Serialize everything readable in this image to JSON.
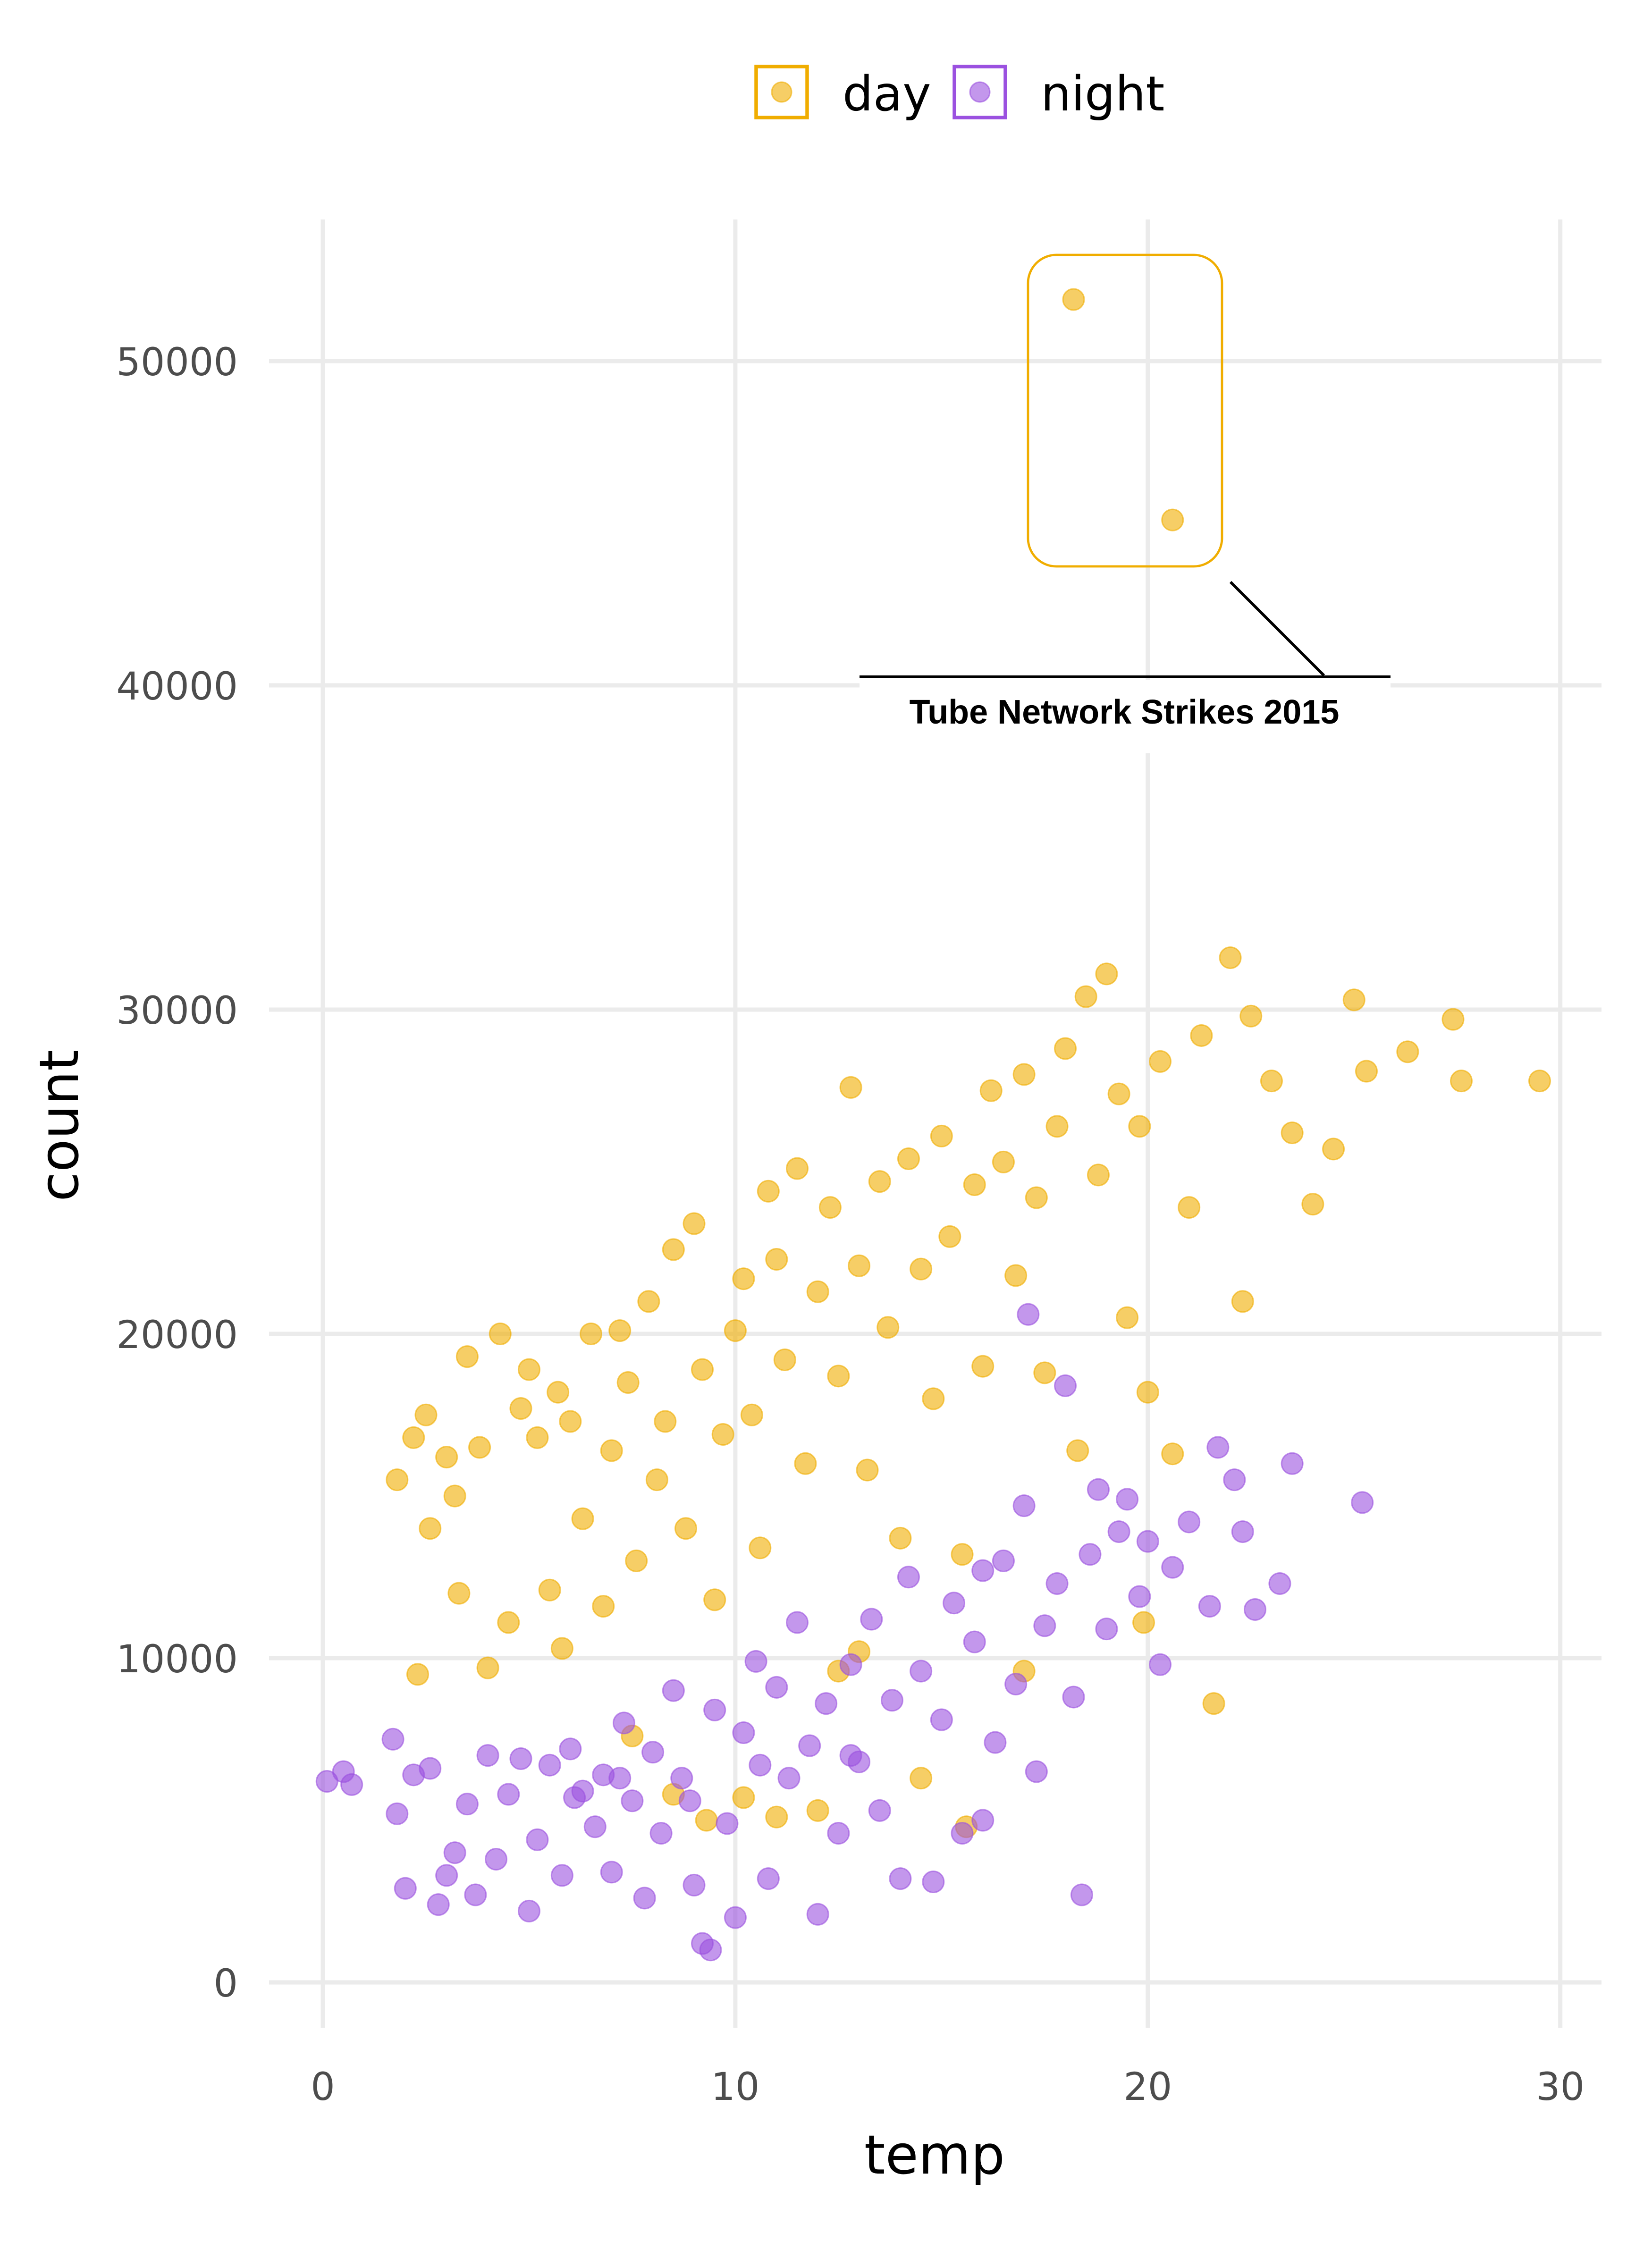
{
  "chart_data": {
    "type": "scatter",
    "xlabel": "temp",
    "ylabel": "count",
    "xlim": [
      -1.3,
      31
    ],
    "ylim": [
      -1400,
      54000
    ],
    "x_ticks": [
      "0",
      "10",
      "20",
      "30"
    ],
    "y_ticks": [
      "0",
      "10000",
      "20000",
      "30000",
      "40000",
      "50000"
    ],
    "grid": true,
    "legend_position": "top",
    "legend": {
      "day": "day",
      "night": "night"
    },
    "colors": {
      "day": "#F0AD00",
      "night": "#9B51E0"
    },
    "annotation": {
      "label": "Tube Network Strikes 2015",
      "highlighted_series": "day",
      "highlighted_points": [
        [
          18.2,
          51900
        ],
        [
          20.6,
          45100
        ]
      ]
    },
    "series": [
      {
        "name": "day",
        "points": [
          [
            1.8,
            15500
          ],
          [
            2.2,
            16800
          ],
          [
            2.5,
            17500
          ],
          [
            2.6,
            14000
          ],
          [
            2.3,
            9500
          ],
          [
            3.0,
            16200
          ],
          [
            3.2,
            15000
          ],
          [
            3.3,
            12000
          ],
          [
            3.5,
            19300
          ],
          [
            3.8,
            16500
          ],
          [
            4.0,
            9700
          ],
          [
            4.3,
            20000
          ],
          [
            4.5,
            11100
          ],
          [
            4.8,
            17700
          ],
          [
            5.0,
            18900
          ],
          [
            5.2,
            16800
          ],
          [
            5.5,
            12100
          ],
          [
            5.8,
            10300
          ],
          [
            5.7,
            18200
          ],
          [
            6.0,
            17300
          ],
          [
            6.3,
            14300
          ],
          [
            6.5,
            20000
          ],
          [
            6.8,
            11600
          ],
          [
            7.0,
            16400
          ],
          [
            7.2,
            20100
          ],
          [
            7.4,
            18500
          ],
          [
            7.6,
            13000
          ],
          [
            7.9,
            21000
          ],
          [
            8.1,
            15500
          ],
          [
            8.3,
            17300
          ],
          [
            8.5,
            22600
          ],
          [
            8.8,
            14000
          ],
          [
            9.0,
            23400
          ],
          [
            9.2,
            18900
          ],
          [
            9.5,
            11800
          ],
          [
            9.7,
            16900
          ],
          [
            10.0,
            20100
          ],
          [
            10.2,
            21700
          ],
          [
            10.4,
            17500
          ],
          [
            10.6,
            13400
          ],
          [
            10.8,
            24400
          ],
          [
            11.0,
            22300
          ],
          [
            11.2,
            19200
          ],
          [
            11.5,
            25100
          ],
          [
            11.7,
            16000
          ],
          [
            12.0,
            21300
          ],
          [
            12.3,
            23900
          ],
          [
            12.5,
            18700
          ],
          [
            12.8,
            27600
          ],
          [
            13.0,
            22100
          ],
          [
            13.2,
            15800
          ],
          [
            13.5,
            24700
          ],
          [
            13.7,
            20200
          ],
          [
            14.0,
            13700
          ],
          [
            14.2,
            25400
          ],
          [
            14.5,
            22000
          ],
          [
            14.8,
            18000
          ],
          [
            15.0,
            26100
          ],
          [
            15.2,
            23000
          ],
          [
            15.5,
            13200
          ],
          [
            15.8,
            24600
          ],
          [
            16.0,
            19000
          ],
          [
            16.2,
            27500
          ],
          [
            16.5,
            25300
          ],
          [
            16.8,
            21800
          ],
          [
            17.0,
            28000
          ],
          [
            17.3,
            24200
          ],
          [
            17.5,
            18800
          ],
          [
            17.8,
            26400
          ],
          [
            18.0,
            28800
          ],
          [
            18.3,
            16400
          ],
          [
            18.5,
            30400
          ],
          [
            18.8,
            24900
          ],
          [
            19.0,
            31100
          ],
          [
            19.3,
            27400
          ],
          [
            19.5,
            20500
          ],
          [
            19.8,
            26400
          ],
          [
            20.0,
            18200
          ],
          [
            20.3,
            28400
          ],
          [
            20.6,
            16300
          ],
          [
            21.0,
            23900
          ],
          [
            21.3,
            29200
          ],
          [
            21.6,
            8600
          ],
          [
            22.0,
            31600
          ],
          [
            22.3,
            21000
          ],
          [
            22.5,
            29800
          ],
          [
            23.0,
            27800
          ],
          [
            23.5,
            26200
          ],
          [
            24.0,
            24000
          ],
          [
            24.5,
            25700
          ],
          [
            25.0,
            30300
          ],
          [
            25.3,
            28100
          ],
          [
            26.3,
            28700
          ],
          [
            27.4,
            29700
          ],
          [
            27.6,
            27800
          ],
          [
            29.5,
            27800
          ],
          [
            7.5,
            7600
          ],
          [
            8.5,
            5800
          ],
          [
            9.3,
            5000
          ],
          [
            10.2,
            5700
          ],
          [
            11.0,
            5100
          ],
          [
            12.0,
            5300
          ],
          [
            12.5,
            9600
          ],
          [
            14.5,
            6300
          ],
          [
            15.6,
            4800
          ],
          [
            13.0,
            10200
          ],
          [
            17.0,
            9600
          ],
          [
            19.9,
            11100
          ],
          [
            18.2,
            51900
          ],
          [
            20.6,
            45100
          ]
        ]
      },
      {
        "name": "night",
        "points": [
          [
            0.1,
            6200
          ],
          [
            0.5,
            6500
          ],
          [
            0.7,
            6100
          ],
          [
            1.7,
            7500
          ],
          [
            1.8,
            5200
          ],
          [
            2.0,
            2900
          ],
          [
            2.2,
            6400
          ],
          [
            2.6,
            6600
          ],
          [
            2.8,
            2400
          ],
          [
            3.0,
            3300
          ],
          [
            3.2,
            4000
          ],
          [
            3.5,
            5500
          ],
          [
            3.7,
            2700
          ],
          [
            4.0,
            7000
          ],
          [
            4.2,
            3800
          ],
          [
            4.5,
            5800
          ],
          [
            4.8,
            6900
          ],
          [
            5.0,
            2200
          ],
          [
            5.2,
            4400
          ],
          [
            5.5,
            6700
          ],
          [
            5.8,
            3300
          ],
          [
            6.0,
            7200
          ],
          [
            6.3,
            5900
          ],
          [
            6.6,
            4800
          ],
          [
            6.8,
            6400
          ],
          [
            7.0,
            3400
          ],
          [
            7.3,
            8000
          ],
          [
            7.5,
            5600
          ],
          [
            7.8,
            2600
          ],
          [
            8.0,
            7100
          ],
          [
            8.2,
            4600
          ],
          [
            8.5,
            9000
          ],
          [
            8.7,
            6300
          ],
          [
            9.0,
            3000
          ],
          [
            9.2,
            1200
          ],
          [
            9.4,
            1000
          ],
          [
            9.5,
            8400
          ],
          [
            9.8,
            4900
          ],
          [
            10.0,
            2000
          ],
          [
            10.2,
            7700
          ],
          [
            10.5,
            9900
          ],
          [
            10.8,
            3200
          ],
          [
            11.0,
            9100
          ],
          [
            11.3,
            6300
          ],
          [
            11.5,
            11100
          ],
          [
            11.8,
            7300
          ],
          [
            12.0,
            2100
          ],
          [
            12.2,
            8600
          ],
          [
            12.5,
            4600
          ],
          [
            12.8,
            9800
          ],
          [
            13.0,
            6800
          ],
          [
            13.3,
            11200
          ],
          [
            13.5,
            5300
          ],
          [
            13.8,
            8700
          ],
          [
            14.0,
            3200
          ],
          [
            14.2,
            12500
          ],
          [
            14.5,
            9600
          ],
          [
            14.8,
            3100
          ],
          [
            15.0,
            8100
          ],
          [
            15.3,
            11700
          ],
          [
            15.5,
            4600
          ],
          [
            15.8,
            10500
          ],
          [
            16.0,
            12700
          ],
          [
            16.3,
            7400
          ],
          [
            16.5,
            13000
          ],
          [
            16.8,
            9200
          ],
          [
            17.0,
            14700
          ],
          [
            17.3,
            6500
          ],
          [
            17.5,
            11000
          ],
          [
            17.8,
            12300
          ],
          [
            18.0,
            18400
          ],
          [
            18.2,
            8800
          ],
          [
            18.4,
            2700
          ],
          [
            18.6,
            13200
          ],
          [
            18.8,
            15200
          ],
          [
            19.0,
            10900
          ],
          [
            19.3,
            13900
          ],
          [
            19.5,
            14900
          ],
          [
            19.8,
            11900
          ],
          [
            20.0,
            13600
          ],
          [
            20.3,
            9800
          ],
          [
            20.6,
            12800
          ],
          [
            21.0,
            14200
          ],
          [
            21.5,
            11600
          ],
          [
            21.7,
            16500
          ],
          [
            22.1,
            15500
          ],
          [
            22.3,
            13900
          ],
          [
            22.6,
            11500
          ],
          [
            23.2,
            12300
          ],
          [
            23.5,
            16000
          ],
          [
            25.2,
            14800
          ],
          [
            17.1,
            20600
          ],
          [
            16.0,
            5000
          ],
          [
            12.8,
            7000
          ],
          [
            10.6,
            6700
          ],
          [
            8.9,
            5600
          ],
          [
            7.2,
            6300
          ],
          [
            6.1,
            5700
          ]
        ]
      }
    ]
  }
}
